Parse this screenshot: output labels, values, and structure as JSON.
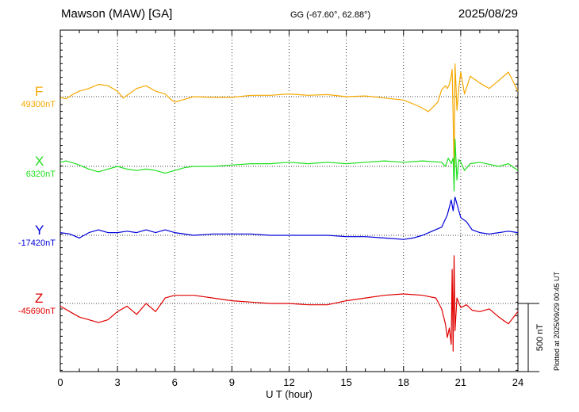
{
  "header": {
    "station": "Mawson (MAW)  [GA]",
    "coords": "GG (-67.60°,  62.88°)",
    "date": "2025/08/29"
  },
  "plotted_note": "Plotted at 2025/09/29 00:45 UT",
  "chart_data": {
    "type": "line",
    "xlabel": "U T (hour)",
    "xlim": [
      0,
      24
    ],
    "xticks": [
      "0",
      "3",
      "6",
      "9",
      "12",
      "15",
      "18",
      "21",
      "24"
    ],
    "grid": "dotted vertical every 3 h",
    "scale_bar_label": "500 nT",
    "scale_bar_nT": 500,
    "series": [
      {
        "name": "F",
        "baseline_label": "49300nT",
        "color": "#f5a800",
        "x": [
          0,
          0.3,
          0.7,
          1,
          1.5,
          2,
          2.5,
          3,
          3.3,
          3.6,
          4,
          4.5,
          5,
          5.5,
          5.8,
          6,
          6.5,
          7,
          8,
          9,
          10,
          11,
          12,
          13,
          14,
          15,
          16,
          17,
          18,
          18.8,
          19.3,
          19.8,
          20,
          20.2,
          20.3,
          20.4,
          20.5,
          20.55,
          20.6,
          20.65,
          20.7,
          20.75,
          20.8,
          20.9,
          21,
          21.2,
          21.5,
          22,
          22.5,
          23,
          23.5,
          24
        ],
        "y": [
          -5,
          -15,
          20,
          40,
          60,
          90,
          80,
          40,
          -10,
          20,
          60,
          80,
          40,
          20,
          -20,
          -40,
          -20,
          0,
          -5,
          -5,
          10,
          10,
          20,
          10,
          15,
          0,
          5,
          -10,
          -25,
          -70,
          -110,
          -40,
          50,
          80,
          60,
          90,
          150,
          200,
          -150,
          -540,
          240,
          80,
          -100,
          60,
          180,
          20,
          150,
          100,
          60,
          120,
          180,
          40
        ]
      },
      {
        "name": "X",
        "baseline_label": "6320nT",
        "color": "#1ee01e",
        "x": [
          0,
          0.3,
          0.8,
          1,
          1.5,
          2,
          2.5,
          3,
          3.5,
          4,
          4.5,
          5,
          5.5,
          6,
          6.5,
          7,
          8,
          9,
          10,
          11,
          12,
          13,
          14,
          15,
          16,
          17,
          18,
          19,
          20,
          20.2,
          20.35,
          20.5,
          20.6,
          20.65,
          20.7,
          20.8,
          20.9,
          21,
          21.2,
          21.5,
          22,
          23,
          23.5,
          24
        ],
        "y": [
          30,
          40,
          20,
          10,
          -20,
          -40,
          -20,
          0,
          -20,
          -30,
          -20,
          -30,
          -50,
          -30,
          -10,
          0,
          0,
          10,
          20,
          20,
          30,
          20,
          30,
          20,
          30,
          40,
          30,
          40,
          30,
          0,
          60,
          20,
          60,
          -180,
          200,
          -100,
          50,
          30,
          -30,
          20,
          30,
          0,
          20,
          -30
        ]
      },
      {
        "name": "Y",
        "baseline_label": "-17420nT",
        "color": "#0000dc",
        "x": [
          0,
          0.5,
          1,
          1.5,
          2,
          2.5,
          3,
          3.5,
          4,
          4.5,
          5,
          5.5,
          6,
          7,
          8,
          9,
          10,
          11,
          12,
          13,
          14,
          15,
          16,
          17,
          18,
          18.5,
          19,
          19.5,
          20,
          20.3,
          20.5,
          20.6,
          20.7,
          20.8,
          21,
          21.3,
          21.6,
          22,
          22.5,
          23,
          23.5,
          24
        ],
        "y": [
          20,
          10,
          -20,
          20,
          40,
          20,
          20,
          30,
          20,
          40,
          20,
          40,
          20,
          0,
          10,
          10,
          10,
          0,
          0,
          0,
          0,
          -10,
          -10,
          -20,
          -30,
          -20,
          0,
          30,
          60,
          150,
          260,
          180,
          280,
          230,
          130,
          100,
          40,
          20,
          10,
          20,
          30,
          20
        ]
      },
      {
        "name": "Z",
        "baseline_label": "-45690nT",
        "color": "#e00000",
        "x": [
          0,
          0.5,
          1,
          1.5,
          2,
          2.5,
          3,
          3.5,
          4,
          4.5,
          5,
          5.5,
          6,
          7,
          8,
          9,
          10,
          11,
          12,
          13,
          14,
          15,
          16,
          17,
          18,
          19,
          19.7,
          20,
          20.2,
          20.3,
          20.4,
          20.5,
          20.55,
          20.6,
          20.65,
          20.7,
          20.8,
          21,
          21.3,
          21.6,
          22,
          22.5,
          23,
          23.5,
          24
        ],
        "y": [
          -20,
          -60,
          -100,
          -120,
          -140,
          -120,
          -60,
          -20,
          -80,
          0,
          -60,
          40,
          60,
          60,
          40,
          20,
          10,
          0,
          0,
          -10,
          -10,
          20,
          40,
          60,
          70,
          60,
          40,
          -40,
          -150,
          -250,
          -180,
          -300,
          250,
          -350,
          350,
          -200,
          40,
          -30,
          -10,
          -50,
          -60,
          -40,
          -100,
          -150,
          -60
        ]
      }
    ]
  }
}
